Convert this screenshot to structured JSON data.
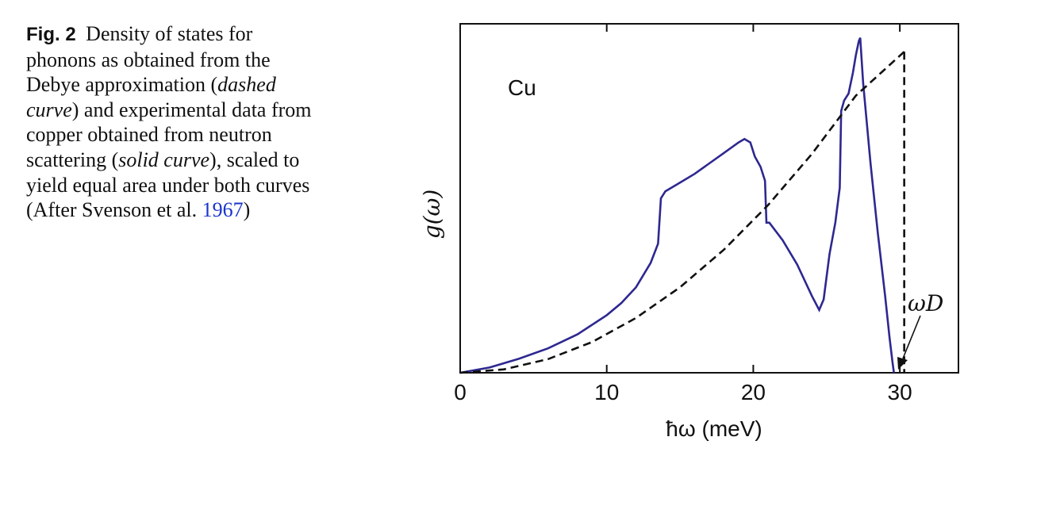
{
  "caption": {
    "label": "Fig. 2",
    "t1": "Density of states for phonons as obtained from the Debye approximation (",
    "t2": "dashed curve",
    "t3": ") and experimental data from copper obtained from neutron scattering (",
    "t4": "solid curve",
    "t5": "), scaled to yield equal area under both curves (After Svenson et al. ",
    "ref_year": "1967",
    "t6": ")"
  },
  "chart_data": {
    "type": "line",
    "title": "",
    "annotation": "Cu",
    "marker_label": "ωD",
    "xlabel": "ħω (meV)",
    "ylabel": "g(ω)",
    "xlim": [
      0,
      34
    ],
    "ylim": [
      0,
      1
    ],
    "xticks": [
      "0",
      "10",
      "20",
      "30"
    ],
    "colors": {
      "solid": "#2e2890",
      "dashed": "#111111",
      "axis": "#111111"
    },
    "series": [
      {
        "style": "solid",
        "x": [
          0,
          2,
          4,
          6,
          8,
          10,
          11,
          12,
          13,
          13.5,
          13.7,
          14,
          15,
          16,
          17,
          18,
          19,
          19.4,
          19.8,
          20.1,
          20.5,
          20.8,
          20.9,
          21.1,
          22,
          23,
          24,
          24.5,
          24.8,
          25.2,
          25.6,
          25.9,
          26,
          26.2,
          26.5,
          26.8,
          27,
          27.2,
          27.3,
          27.5,
          28,
          28.5,
          29,
          29.3,
          29.5,
          29.6
        ],
        "y": [
          0,
          0.015,
          0.04,
          0.07,
          0.11,
          0.165,
          0.2,
          0.245,
          0.315,
          0.37,
          0.5,
          0.52,
          0.545,
          0.57,
          0.6,
          0.63,
          0.66,
          0.67,
          0.66,
          0.62,
          0.59,
          0.55,
          0.43,
          0.43,
          0.38,
          0.31,
          0.22,
          0.18,
          0.21,
          0.34,
          0.43,
          0.53,
          0.75,
          0.78,
          0.8,
          0.86,
          0.91,
          0.95,
          0.96,
          0.83,
          0.6,
          0.4,
          0.22,
          0.1,
          0.03,
          0
        ]
      },
      {
        "style": "dashed",
        "x": [
          0,
          3,
          6,
          9,
          12,
          15,
          18,
          21,
          24,
          27,
          30.3
        ],
        "y": [
          0,
          0.0098,
          0.039,
          0.088,
          0.157,
          0.245,
          0.353,
          0.48,
          0.627,
          0.794,
          0.92
        ]
      }
    ],
    "cutoff": {
      "x": 30.3,
      "y": 0.92
    }
  }
}
